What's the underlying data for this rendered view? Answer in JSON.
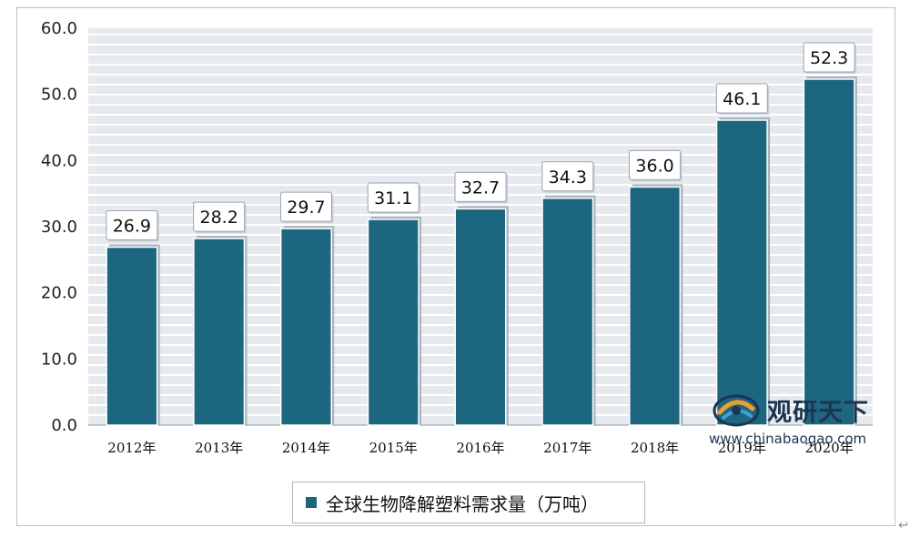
{
  "chart_data": {
    "type": "bar",
    "title": "",
    "xlabel": "",
    "ylabel": "",
    "categories": [
      "2012年",
      "2013年",
      "2014年",
      "2015年",
      "2016年",
      "2017年",
      "2018年",
      "2019年",
      "2020年"
    ],
    "series": [
      {
        "name": "全球生物降解塑料需求量（万吨）",
        "values": [
          26.9,
          28.2,
          29.7,
          31.1,
          32.7,
          34.3,
          36.0,
          46.1,
          52.3
        ],
        "labels": [
          "26.9",
          "28.2",
          "29.7",
          "31.1",
          "32.7",
          "34.3",
          "36.0",
          "46.1",
          "52.3"
        ]
      }
    ],
    "ylim": [
      0,
      60
    ],
    "yticks": [
      "0.0",
      "10.0",
      "20.0",
      "30.0",
      "40.0",
      "50.0",
      "60.0"
    ],
    "grid": "horizontal",
    "legend_position": "bottom"
  },
  "colors": {
    "bar": "#1c6680",
    "plot_background": "#e6eaef",
    "gridline": "#ffffff",
    "bar_shadow": "#aab4be"
  },
  "watermark": {
    "brand": "观研天下",
    "url": "www.chinabaogao.com"
  },
  "corner_icon": "return-arrow-icon"
}
